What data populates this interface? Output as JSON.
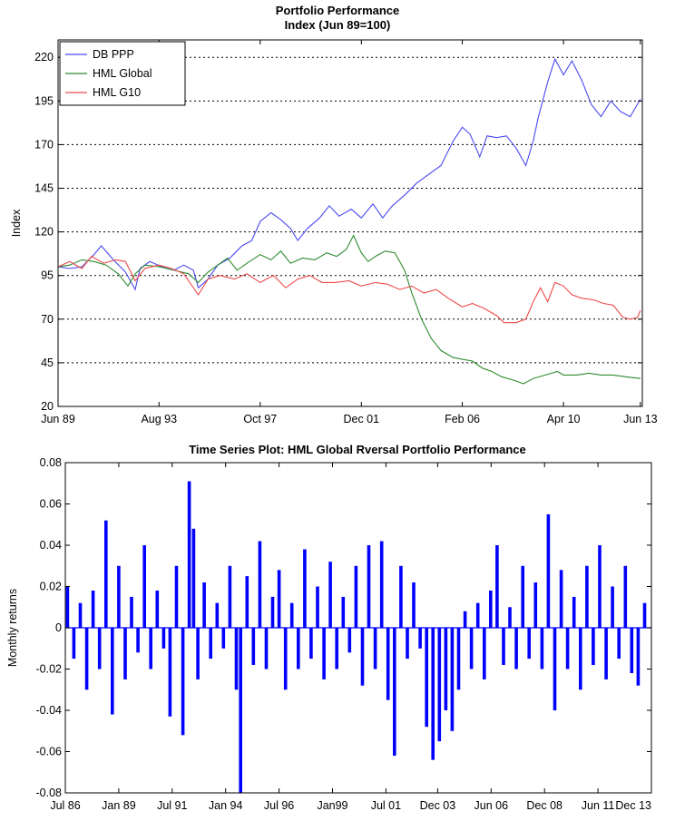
{
  "chart_data": [
    {
      "type": "line",
      "title": "Portfolio Performance",
      "subtitle": "Index (Jun 89=100)",
      "xlabel": "",
      "ylabel": "Index",
      "xlim": [
        1989.42,
        2013.5
      ],
      "ylim": [
        20,
        230
      ],
      "grid": "horizontal dotted",
      "legend_position": "top-left",
      "x_tick_labels": [
        {
          "label": "Jun 89",
          "x": 1989.42
        },
        {
          "label": "Aug 93",
          "x": 1993.58
        },
        {
          "label": "Oct 97",
          "x": 1997.75
        },
        {
          "label": "Dec 01",
          "x": 2001.92
        },
        {
          "label": "Feb 06",
          "x": 2006.08
        },
        {
          "label": "Apr 10",
          "x": 2010.25
        },
        {
          "label": "Jun 13",
          "x": 2013.42
        }
      ],
      "y_ticks": [
        20,
        45,
        70,
        95,
        120,
        145,
        170,
        195,
        220
      ],
      "series": [
        {
          "name": "DB PPP",
          "color": "#4a4af0",
          "points": [
            [
              1989.42,
              100
            ],
            [
              1989.9,
              99
            ],
            [
              1990.4,
              100
            ],
            [
              1990.9,
              107
            ],
            [
              1991.2,
              112
            ],
            [
              1991.7,
              104
            ],
            [
              1992.2,
              97
            ],
            [
              1992.6,
              87
            ],
            [
              1992.8,
              99
            ],
            [
              1993.2,
              103
            ],
            [
              1993.7,
              100
            ],
            [
              1994.2,
              98
            ],
            [
              1994.6,
              101
            ],
            [
              1995.0,
              98
            ],
            [
              1995.2,
              88
            ],
            [
              1995.6,
              93
            ],
            [
              1996.0,
              101
            ],
            [
              1996.5,
              105
            ],
            [
              1997.0,
              112
            ],
            [
              1997.4,
              115
            ],
            [
              1997.75,
              126
            ],
            [
              1998.2,
              131
            ],
            [
              1998.6,
              127
            ],
            [
              1999.0,
              122
            ],
            [
              1999.3,
              115
            ],
            [
              1999.7,
              122
            ],
            [
              2000.2,
              128
            ],
            [
              2000.6,
              135
            ],
            [
              2001.0,
              129
            ],
            [
              2001.5,
              133
            ],
            [
              2001.92,
              128
            ],
            [
              2002.4,
              136
            ],
            [
              2002.8,
              128
            ],
            [
              2003.2,
              135
            ],
            [
              2003.7,
              141
            ],
            [
              2004.2,
              148
            ],
            [
              2004.7,
              153
            ],
            [
              2005.2,
              158
            ],
            [
              2005.7,
              172
            ],
            [
              2006.08,
              180
            ],
            [
              2006.4,
              176
            ],
            [
              2006.8,
              163
            ],
            [
              2007.1,
              175
            ],
            [
              2007.5,
              174
            ],
            [
              2007.9,
              175
            ],
            [
              2008.3,
              168
            ],
            [
              2008.7,
              158
            ],
            [
              2009.0,
              172
            ],
            [
              2009.2,
              185
            ],
            [
              2009.6,
              206
            ],
            [
              2009.9,
              219
            ],
            [
              2010.25,
              210
            ],
            [
              2010.6,
              218
            ],
            [
              2011.0,
              207
            ],
            [
              2011.4,
              193
            ],
            [
              2011.8,
              186
            ],
            [
              2012.2,
              195
            ],
            [
              2012.6,
              189
            ],
            [
              2013.0,
              186
            ],
            [
              2013.42,
              196
            ]
          ]
        },
        {
          "name": "HML Global",
          "color": "#2e8b2e",
          "points": [
            [
              1989.42,
              100
            ],
            [
              1989.9,
              101
            ],
            [
              1990.4,
              104
            ],
            [
              1990.9,
              103
            ],
            [
              1991.4,
              101
            ],
            [
              1991.9,
              96
            ],
            [
              1992.3,
              89
            ],
            [
              1992.6,
              96
            ],
            [
              1993.0,
              101
            ],
            [
              1993.6,
              100
            ],
            [
              1994.2,
              98
            ],
            [
              1994.8,
              96
            ],
            [
              1995.2,
              91
            ],
            [
              1995.6,
              97
            ],
            [
              1996.0,
              101
            ],
            [
              1996.4,
              105
            ],
            [
              1996.8,
              98
            ],
            [
              1997.2,
              102
            ],
            [
              1997.75,
              107
            ],
            [
              1998.2,
              104
            ],
            [
              1998.6,
              109
            ],
            [
              1999.0,
              102
            ],
            [
              1999.5,
              105
            ],
            [
              2000.0,
              104
            ],
            [
              2000.5,
              108
            ],
            [
              2000.9,
              106
            ],
            [
              2001.3,
              110
            ],
            [
              2001.6,
              118
            ],
            [
              2001.92,
              108
            ],
            [
              2002.2,
              103
            ],
            [
              2002.5,
              106
            ],
            [
              2002.9,
              109
            ],
            [
              2003.3,
              108
            ],
            [
              2003.7,
              98
            ],
            [
              2004.0,
              85
            ],
            [
              2004.4,
              70
            ],
            [
              2004.8,
              59
            ],
            [
              2005.2,
              52
            ],
            [
              2005.7,
              48
            ],
            [
              2006.08,
              47
            ],
            [
              2006.5,
              46
            ],
            [
              2006.9,
              42
            ],
            [
              2007.3,
              40
            ],
            [
              2007.7,
              37
            ],
            [
              2008.2,
              35
            ],
            [
              2008.6,
              33
            ],
            [
              2009.0,
              36
            ],
            [
              2009.5,
              38
            ],
            [
              2010.0,
              40
            ],
            [
              2010.25,
              38
            ],
            [
              2010.8,
              38
            ],
            [
              2011.3,
              39
            ],
            [
              2011.8,
              38
            ],
            [
              2012.3,
              38
            ],
            [
              2012.8,
              37
            ],
            [
              2013.42,
              36
            ]
          ]
        },
        {
          "name": "HML G10",
          "color": "#ee4a4a",
          "points": [
            [
              1989.42,
              100
            ],
            [
              1989.9,
              103
            ],
            [
              1990.4,
              99
            ],
            [
              1990.8,
              106
            ],
            [
              1991.3,
              102
            ],
            [
              1991.8,
              104
            ],
            [
              1992.2,
              103
            ],
            [
              1992.6,
              92
            ],
            [
              1993.0,
              99
            ],
            [
              1993.58,
              101
            ],
            [
              1994.1,
              99
            ],
            [
              1994.6,
              96
            ],
            [
              1995.2,
              84
            ],
            [
              1995.6,
              93
            ],
            [
              1996.1,
              95
            ],
            [
              1996.7,
              93
            ],
            [
              1997.2,
              96
            ],
            [
              1997.75,
              91
            ],
            [
              1998.3,
              95
            ],
            [
              1998.8,
              88
            ],
            [
              1999.3,
              93
            ],
            [
              1999.8,
              95
            ],
            [
              2000.3,
              91
            ],
            [
              2000.8,
              91
            ],
            [
              2001.4,
              92
            ],
            [
              2001.92,
              89
            ],
            [
              2002.5,
              91
            ],
            [
              2003.0,
              90
            ],
            [
              2003.5,
              87
            ],
            [
              2004.0,
              89
            ],
            [
              2004.5,
              85
            ],
            [
              2005.0,
              87
            ],
            [
              2005.5,
              82
            ],
            [
              2006.08,
              77
            ],
            [
              2006.5,
              79
            ],
            [
              2007.0,
              76
            ],
            [
              2007.5,
              72
            ],
            [
              2007.8,
              68
            ],
            [
              2008.3,
              68
            ],
            [
              2008.7,
              70
            ],
            [
              2009.0,
              80
            ],
            [
              2009.3,
              88
            ],
            [
              2009.6,
              80
            ],
            [
              2009.9,
              91
            ],
            [
              2010.25,
              89
            ],
            [
              2010.6,
              84
            ],
            [
              2011.0,
              82
            ],
            [
              2011.5,
              81
            ],
            [
              2011.9,
              79
            ],
            [
              2012.3,
              78
            ],
            [
              2012.7,
              71
            ],
            [
              2013.0,
              70
            ],
            [
              2013.3,
              71
            ],
            [
              2013.42,
              75
            ]
          ]
        }
      ]
    },
    {
      "type": "bar",
      "title": "Time Series Plot: HML Global Rversal Portfolio Performance",
      "xlabel": "",
      "ylabel": "Monthly returns",
      "xlim": [
        1986.5,
        2013.92
      ],
      "ylim": [
        -0.08,
        0.08
      ],
      "grid": "off",
      "x_tick_labels": [
        {
          "label": "Jul 86",
          "x": 1986.5
        },
        {
          "label": "Jan 89",
          "x": 1989.0
        },
        {
          "label": "Jul 91",
          "x": 1991.5
        },
        {
          "label": "Jan 94",
          "x": 1994.0
        },
        {
          "label": "Jul 96",
          "x": 1996.5
        },
        {
          "label": "Jan99",
          "x": 1999.0
        },
        {
          "label": "Jul 01",
          "x": 2001.5
        },
        {
          "label": "Dec 03",
          "x": 2003.92
        },
        {
          "label": "Jun 06",
          "x": 2006.42
        },
        {
          "label": "Dec 08",
          "x": 2008.92
        },
        {
          "label": "Jun 11",
          "x": 2011.42
        },
        {
          "label": "Dec 13",
          "x": 2013.92
        }
      ],
      "y_ticks": [
        {
          "value": -0.08,
          "label": "-0.08"
        },
        {
          "value": -0.06,
          "label": "-0.06"
        },
        {
          "value": -0.04,
          "label": "-0.04"
        },
        {
          "value": -0.02,
          "label": "-0.02"
        },
        {
          "value": 0,
          "label": "0"
        },
        {
          "value": 0.02,
          "label": "0.02"
        },
        {
          "value": 0.04,
          "label": "0.04"
        },
        {
          "value": 0.06,
          "label": "0.06"
        },
        {
          "value": 0.08,
          "label": "0.08"
        }
      ],
      "series": [
        {
          "name": "",
          "color": "#0000ff",
          "x": [
            1986.6,
            1986.9,
            1987.2,
            1987.5,
            1987.8,
            1988.1,
            1988.4,
            1988.7,
            1989.0,
            1989.3,
            1989.6,
            1989.9,
            1990.2,
            1990.5,
            1990.8,
            1991.1,
            1991.4,
            1991.7,
            1992.0,
            1992.3,
            1992.5,
            1992.7,
            1993.0,
            1993.3,
            1993.6,
            1993.9,
            1994.2,
            1994.5,
            1994.7,
            1995.0,
            1995.3,
            1995.6,
            1995.9,
            1996.2,
            1996.5,
            1996.8,
            1997.1,
            1997.4,
            1997.7,
            1998.0,
            1998.3,
            1998.6,
            1998.9,
            1999.2,
            1999.5,
            1999.8,
            2000.1,
            2000.4,
            2000.7,
            2001.0,
            2001.3,
            2001.6,
            2001.9,
            2002.2,
            2002.5,
            2002.8,
            2003.1,
            2003.4,
            2003.7,
            2004.0,
            2004.3,
            2004.6,
            2004.9,
            2005.2,
            2005.5,
            2005.8,
            2006.1,
            2006.4,
            2006.7,
            2007.0,
            2007.3,
            2007.6,
            2007.9,
            2008.2,
            2008.5,
            2008.8,
            2009.1,
            2009.4,
            2009.7,
            2010.0,
            2010.3,
            2010.6,
            2010.9,
            2011.2,
            2011.5,
            2011.8,
            2012.1,
            2012.4,
            2012.7,
            2013.0,
            2013.3,
            2013.6
          ],
          "values": [
            0.02,
            -0.015,
            0.012,
            -0.03,
            0.018,
            -0.02,
            0.052,
            -0.042,
            0.03,
            -0.025,
            0.015,
            -0.012,
            0.04,
            -0.02,
            0.018,
            -0.01,
            -0.043,
            0.03,
            -0.052,
            0.071,
            0.048,
            -0.025,
            0.022,
            -0.015,
            0.012,
            -0.01,
            0.03,
            -0.03,
            -0.08,
            0.025,
            -0.018,
            0.042,
            -0.02,
            0.015,
            0.028,
            -0.03,
            0.012,
            -0.02,
            0.038,
            -0.015,
            0.02,
            -0.025,
            0.032,
            -0.02,
            0.015,
            -0.012,
            0.03,
            -0.028,
            0.04,
            -0.02,
            0.042,
            -0.035,
            -0.062,
            0.03,
            -0.015,
            0.022,
            -0.01,
            -0.048,
            -0.064,
            -0.055,
            -0.04,
            -0.05,
            -0.03,
            0.008,
            -0.02,
            0.012,
            -0.025,
            0.018,
            0.04,
            -0.018,
            0.01,
            -0.02,
            0.03,
            -0.015,
            0.022,
            -0.02,
            0.055,
            -0.04,
            0.028,
            -0.02,
            0.015,
            -0.03,
            0.03,
            -0.018,
            0.04,
            -0.025,
            0.02,
            -0.015,
            0.03,
            -0.022,
            -0.028,
            0.012
          ]
        }
      ]
    }
  ]
}
